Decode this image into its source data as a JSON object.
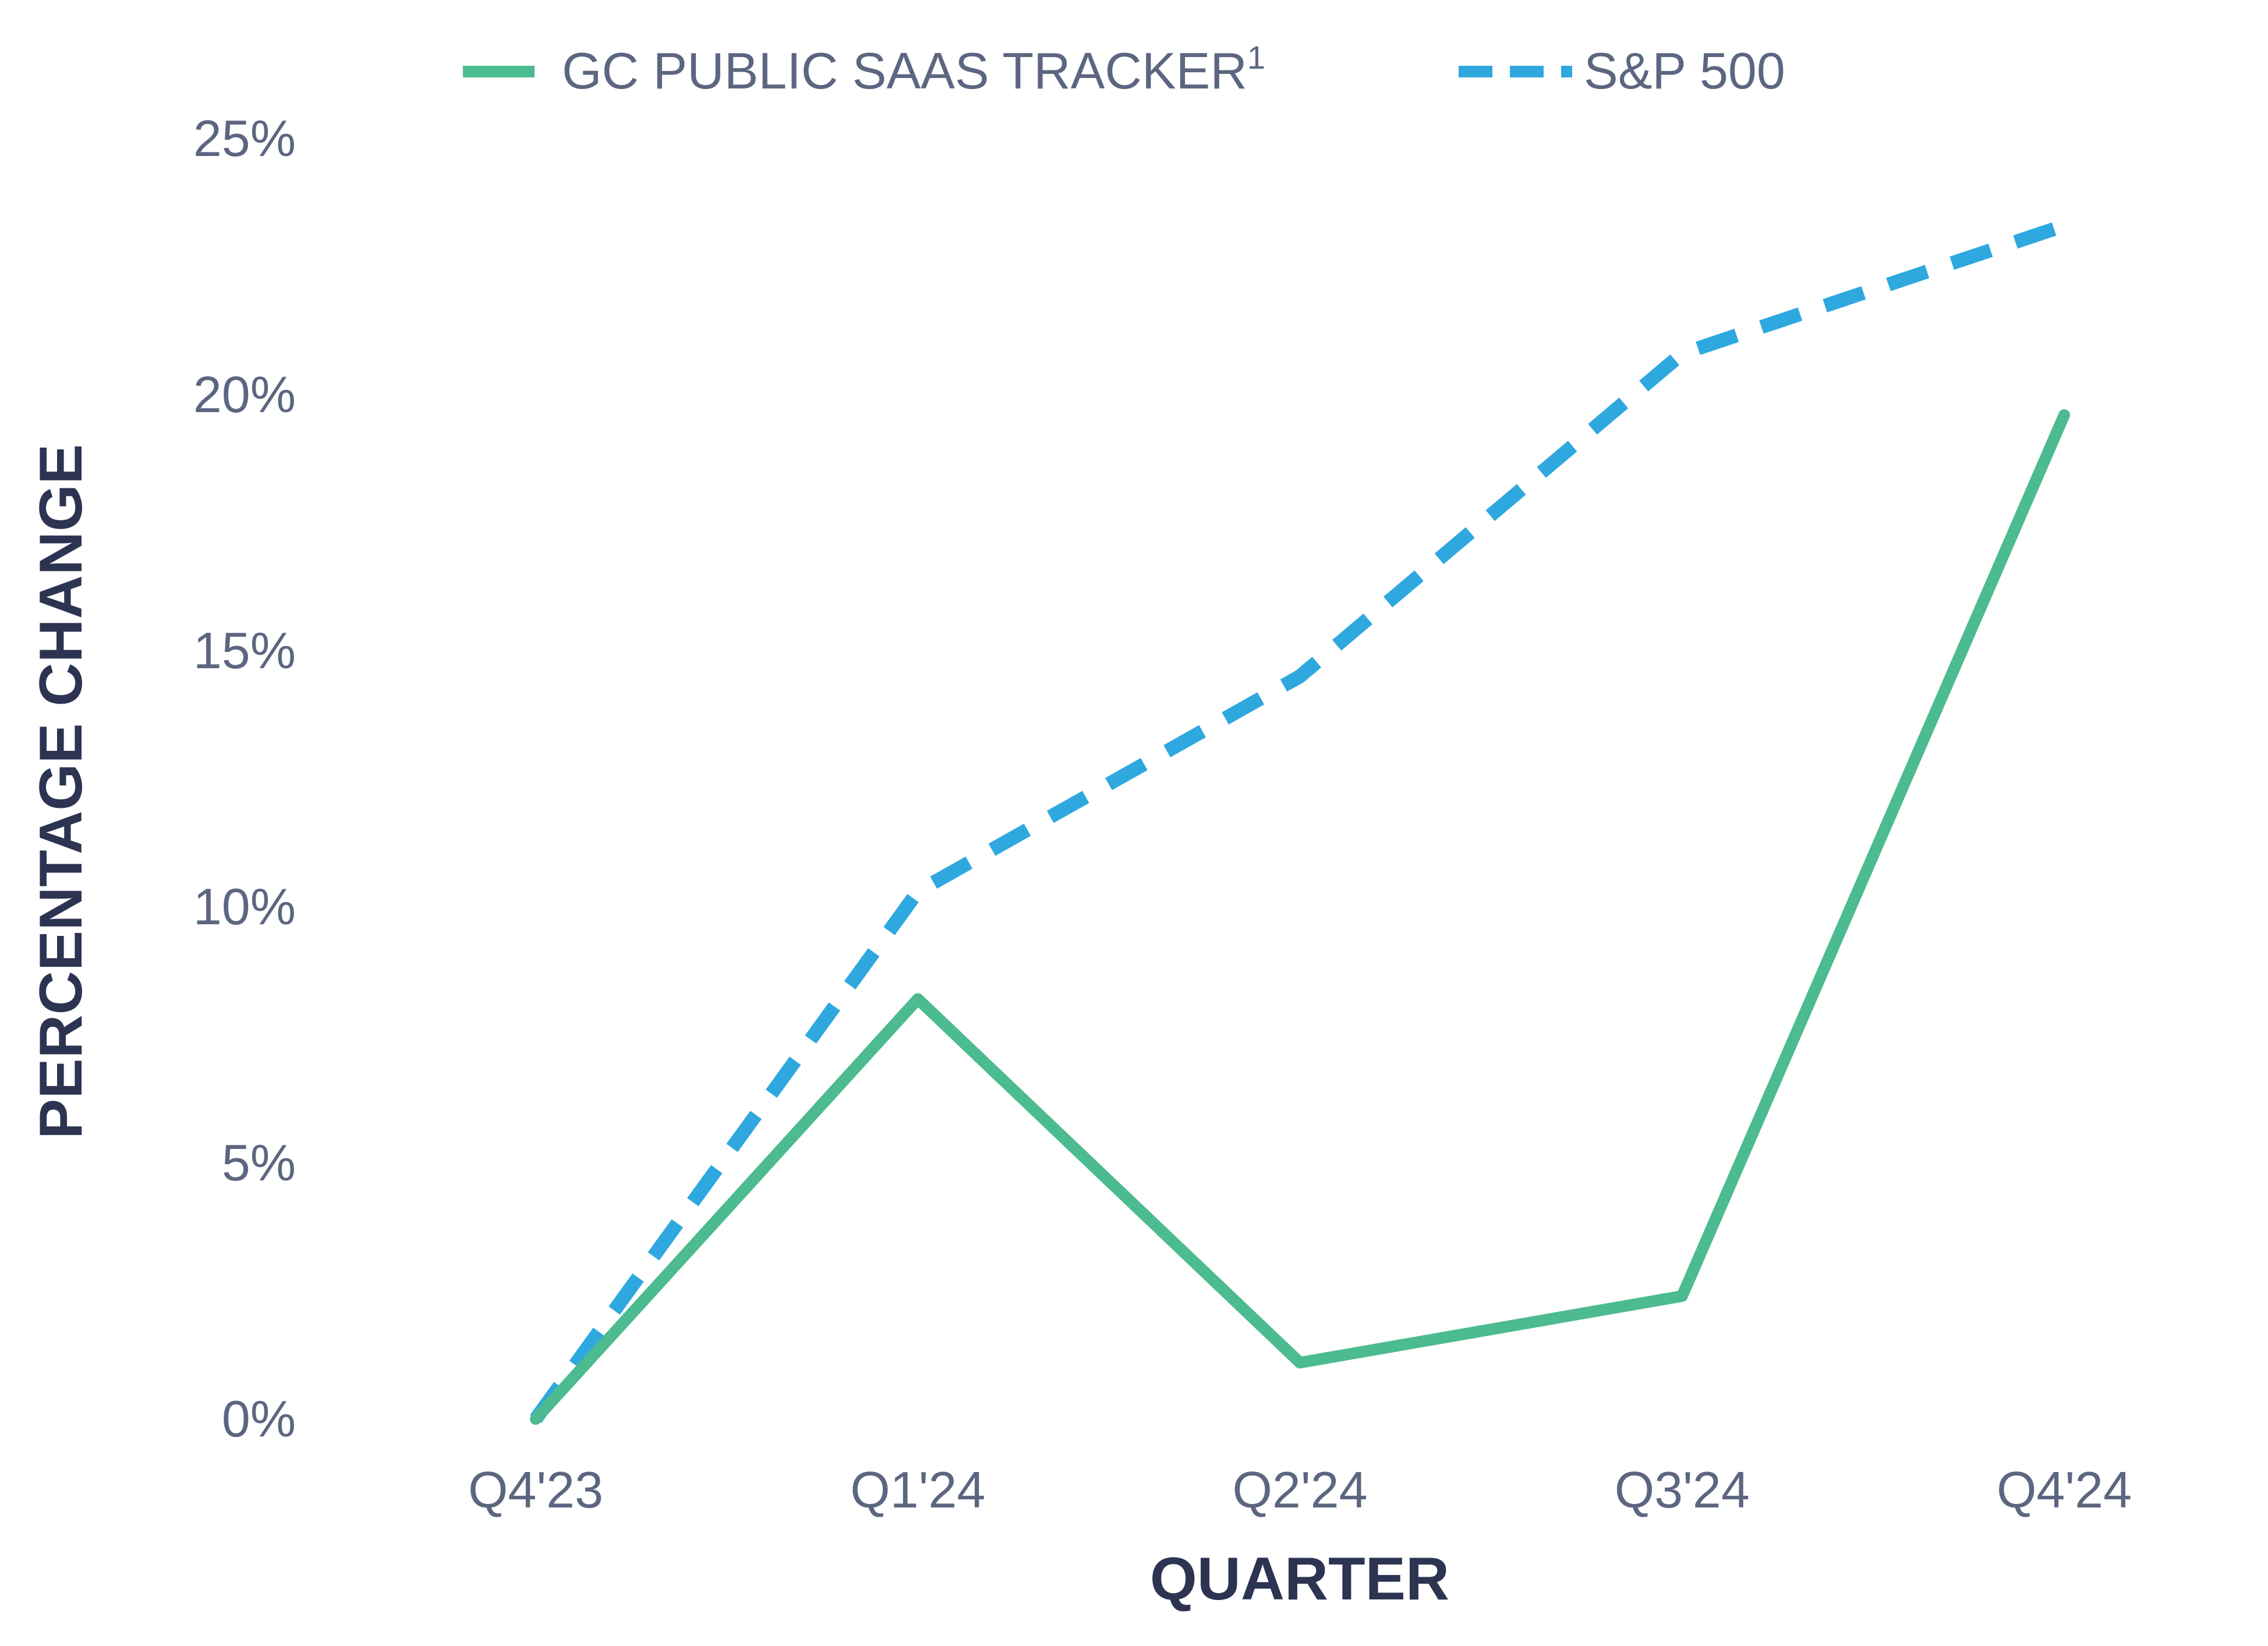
{
  "chart_data": {
    "type": "line",
    "categories": [
      "Q4'23",
      "Q1'24",
      "Q2'24",
      "Q3'24",
      "Q4'24"
    ],
    "series": [
      {
        "name": "GC PUBLIC SAAS TRACKER",
        "name_superscript": "1",
        "values": [
          0,
          8.2,
          1.1,
          2.4,
          19.6
        ],
        "color": "#4cbb8f",
        "style": "solid"
      },
      {
        "name": "S&P 500",
        "values": [
          0,
          10.3,
          14.5,
          20.8,
          23.3
        ],
        "color": "#2ea8df",
        "style": "dashed"
      }
    ],
    "xlabel": "QUARTER",
    "ylabel": "PERCENTAGE CHANGE",
    "ylim": [
      0,
      25
    ],
    "yticks": [
      "0%",
      "5%",
      "10%",
      "15%",
      "20%",
      "25%"
    ],
    "ytick_values": [
      0,
      5,
      10,
      15,
      20,
      25
    ],
    "grid": false,
    "legend_position": "top",
    "axis_color": "#4cbb8f"
  }
}
